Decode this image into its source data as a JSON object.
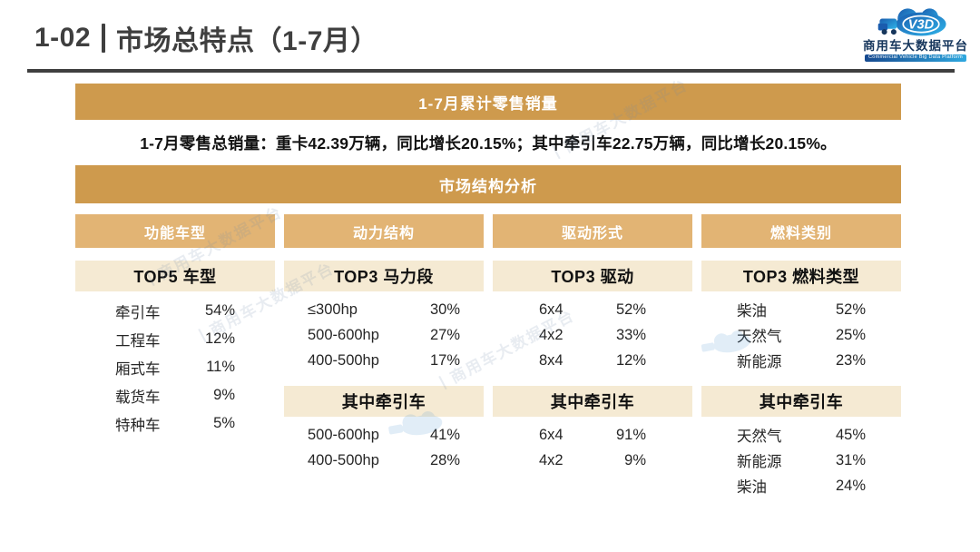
{
  "header": {
    "title_number": "1-02",
    "title_text": "市场总特点（1-7月）",
    "logo": {
      "mark": "V3D",
      "name": "商用车大数据平台",
      "subtitle": "Commercial Vehicle Big Data Platform"
    }
  },
  "sales": {
    "banner": "1-7月累计零售销量",
    "summary": "1-7月零售总销量：重卡42.39万辆，同比增长20.15%；其中牵引车22.75万辆，同比增长20.15%。"
  },
  "structure": {
    "banner": "市场结构分析"
  },
  "columns": [
    {
      "header": "功能车型",
      "blocks": [
        {
          "title": "TOP5 车型",
          "rows": [
            {
              "label": "牵引车",
              "value": "54%"
            },
            {
              "label": "工程车",
              "value": "12%"
            },
            {
              "label": "厢式车",
              "value": "11%"
            },
            {
              "label": "载货车",
              "value": "9%"
            },
            {
              "label": "特种车",
              "value": "5%"
            }
          ]
        }
      ]
    },
    {
      "header": "动力结构",
      "blocks": [
        {
          "title": "TOP3 马力段",
          "rows": [
            {
              "label": "≤300hp",
              "value": "30%"
            },
            {
              "label": "500-600hp",
              "value": "27%"
            },
            {
              "label": "400-500hp",
              "value": "17%"
            }
          ]
        },
        {
          "title": "其中牵引车",
          "rows": [
            {
              "label": "500-600hp",
              "value": "41%"
            },
            {
              "label": "400-500hp",
              "value": "28%"
            }
          ]
        }
      ]
    },
    {
      "header": "驱动形式",
      "blocks": [
        {
          "title": "TOP3 驱动",
          "rows": [
            {
              "label": "6x4",
              "value": "52%"
            },
            {
              "label": "4x2",
              "value": "33%"
            },
            {
              "label": "8x4",
              "value": "12%"
            }
          ]
        },
        {
          "title": "其中牵引车",
          "rows": [
            {
              "label": "6x4",
              "value": "91%"
            },
            {
              "label": "4x2",
              "value": "9%"
            }
          ]
        }
      ]
    },
    {
      "header": "燃料类别",
      "blocks": [
        {
          "title": "TOP3 燃料类型",
          "rows": [
            {
              "label": "柴油",
              "value": "52%"
            },
            {
              "label": "天然气",
              "value": "25%"
            },
            {
              "label": "新能源",
              "value": "23%"
            }
          ]
        },
        {
          "title": "其中牵引车",
          "rows": [
            {
              "label": "天然气",
              "value": "45%"
            },
            {
              "label": "新能源",
              "value": "31%"
            },
            {
              "label": "柴油",
              "value": "24%"
            }
          ]
        }
      ]
    }
  ],
  "watermark": "丨商用车大数据平台",
  "colors": {
    "banner_gold": "#ce9a4d",
    "column_gold": "#e2b474",
    "block_cream": "#f5ead3",
    "title_gray": "#3f3f3f",
    "logo_blue": "#1e7dc8"
  }
}
